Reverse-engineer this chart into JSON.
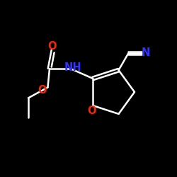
{
  "background_color": "#000000",
  "bond_color": "#ffffff",
  "N_color": "#3333ff",
  "O_color": "#ff2200",
  "line_width": 1.8,
  "figsize": [
    2.5,
    2.5
  ],
  "dpi": 100,
  "xlim": [
    0,
    10
  ],
  "ylim": [
    0,
    10
  ],
  "font_size": 10.5
}
